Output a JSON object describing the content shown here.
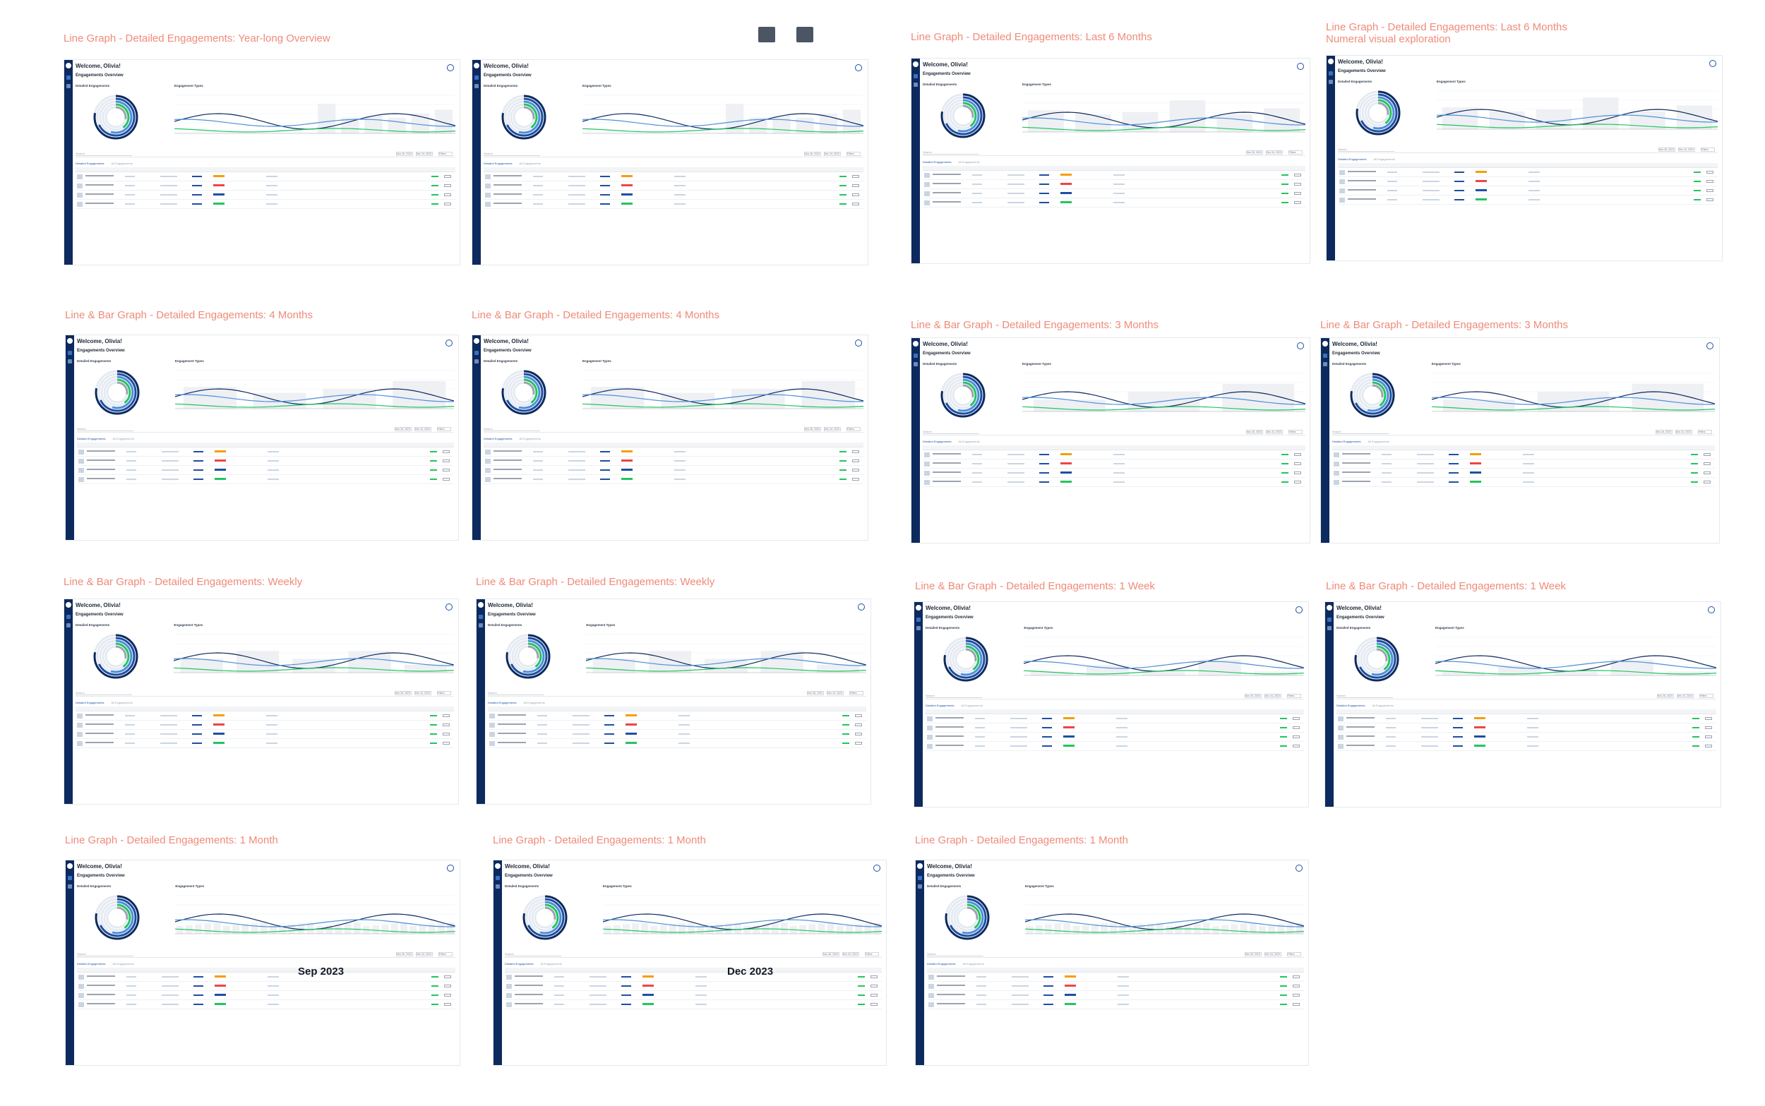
{
  "frames": [
    {
      "title": "Line Graph - Detailed Engagements: Year-long Overview",
      "x": 0,
      "y": 0,
      "kind": "line-year"
    },
    {
      "title": "",
      "x": 0,
      "y": 0,
      "kind": "line-year"
    },
    {
      "title": "Line Graph - Detailed Engagements: Last 6 Months",
      "x": 0,
      "y": 0,
      "kind": "line-6m"
    },
    {
      "title": "Line Graph - Detailed Engagements: Last 6 Months",
      "subtitle": "Numeral visual exploration",
      "x": 0,
      "y": 0,
      "kind": "line-6m"
    },
    {
      "title": "Line & Bar  Graph - Detailed Engagements: 4 Months",
      "x": 0,
      "y": 0,
      "kind": "bar-4m"
    },
    {
      "title": "Line & Bar  Graph - Detailed Engagements: 4 Months",
      "x": 0,
      "y": 0,
      "kind": "bar-4m"
    },
    {
      "title": "Line & Bar Graph - Detailed Engagements: 3 Months",
      "x": 0,
      "y": 0,
      "kind": "bar-3m"
    },
    {
      "title": "Line & Bar Graph - Detailed Engagements: 3 Months",
      "x": 0,
      "y": 0,
      "kind": "bar-3m"
    },
    {
      "title": "Line & Bar Graph - Detailed Engagements: Weekly",
      "x": 0,
      "y": 0,
      "kind": "bar-week"
    },
    {
      "title": "Line & Bar Graph - Detailed Engagements: Weekly",
      "x": 0,
      "y": 0,
      "kind": "bar-week"
    },
    {
      "title": "Line & Bar Graph - Detailed Engagements: 1 Week",
      "x": 0,
      "y": 0,
      "kind": "bar-1w"
    },
    {
      "title": "Line & Bar Graph - Detailed Engagements: 1 Week",
      "x": 0,
      "y": 0,
      "kind": "bar-1w"
    },
    {
      "title": "Line Graph - Detailed Engagements: 1 Month",
      "x": 0,
      "y": 0,
      "kind": "month",
      "month": "Sep 2023"
    },
    {
      "title": "Line Graph - Detailed Engagements: 1 Month",
      "x": 0,
      "y": 0,
      "kind": "month",
      "month": "Dec 2023"
    },
    {
      "title": "Line Graph - Detailed Engagements: 1 Month",
      "x": 0,
      "y": 0,
      "kind": "month",
      "month": ""
    }
  ],
  "ui": {
    "welcome": "Welcome, Olivia!",
    "overview": "Engagements Overview",
    "detailed": "Detailed Engagements",
    "types": "Engagement Types",
    "search": "Search",
    "date_start": "Nov 26, 2023",
    "date_end": "Dec 24, 2023",
    "filters": "Filters",
    "tab_detailed": "Detailed Engagements",
    "tab_all": "All Engagements"
  },
  "colors": {
    "accent": "#1d4fa3",
    "navy": "#0d2a5e",
    "green": "#22c55e",
    "title": "#f08a7a"
  }
}
